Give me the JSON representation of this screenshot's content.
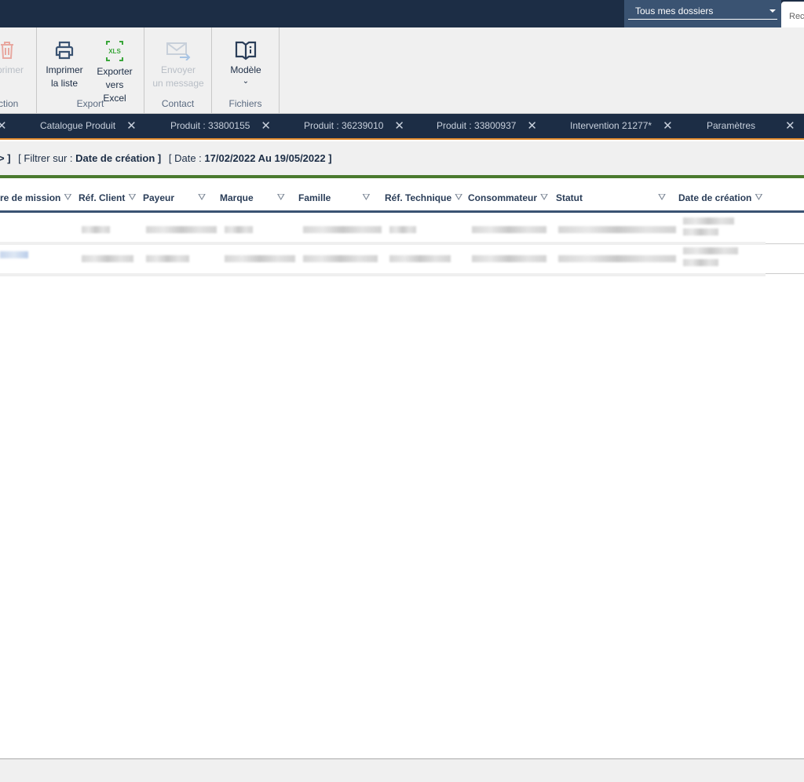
{
  "topbar": {
    "dossier_select": "Tous mes dossiers",
    "right_tab": "Rec"
  },
  "ribbon": {
    "groups": [
      {
        "label": "ction",
        "buttons": [
          {
            "label": "primer",
            "icon": "trash-icon",
            "disabled": true
          }
        ]
      },
      {
        "label": "Export",
        "buttons": [
          {
            "label1": "Imprimer",
            "label2": "la liste",
            "icon": "printer-icon"
          },
          {
            "label1": "Exporter",
            "label2": "vers Excel",
            "icon": "xls-icon"
          }
        ]
      },
      {
        "label": "Contact",
        "buttons": [
          {
            "label1": "Envoyer",
            "label2": "un message",
            "icon": "mail-send-icon",
            "disabled": true
          }
        ]
      },
      {
        "label": "Fichiers",
        "buttons": [
          {
            "label1": "Modèle",
            "icon": "book-info-icon",
            "dropdown": true
          }
        ]
      }
    ]
  },
  "tabs": [
    "Catalogue Produit",
    "Produit : 33800155",
    "Produit : 36239010",
    "Produit : 33800937",
    "Intervention 21277*",
    "Paramètres"
  ],
  "filter": {
    "prefix": "> ]",
    "filter_label": "[ Filtrer sur :",
    "filter_value": "Date de création ]",
    "date_label": "[ Date :",
    "date_value": "17/02/2022 Au 19/05/2022 ]"
  },
  "columns": [
    "re de mission",
    "Réf. Client",
    "Payeur",
    "Marque",
    "Famille",
    "Réf. Technique",
    "Consommateur",
    "Statut",
    "Date de création"
  ],
  "colors": {
    "nav": "#1c2d45",
    "accent_green": "#4a7a2e",
    "accent_orange": "#e08a2c",
    "header_border": "#3a5372"
  }
}
